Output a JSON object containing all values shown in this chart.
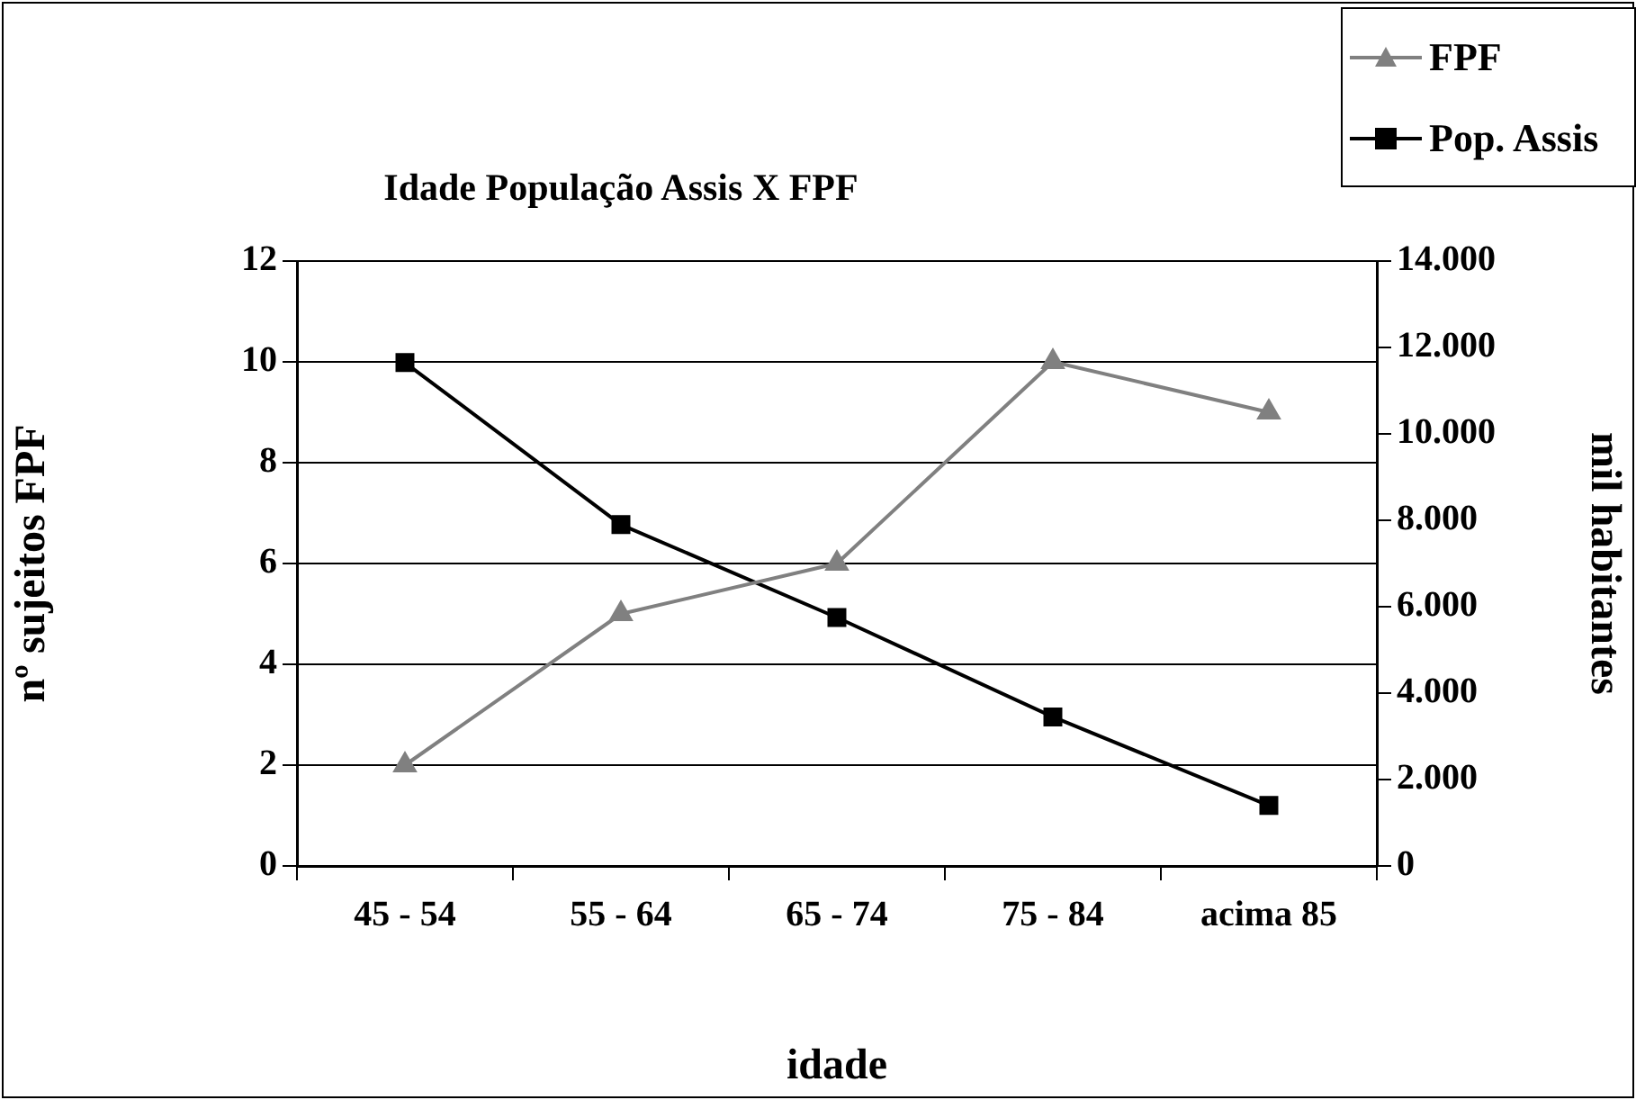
{
  "chart_data": {
    "type": "line",
    "title": "Idade População Assis X FPF",
    "xlabel": "idade",
    "ylabel": "nº sujeitos FPF",
    "y2label": "mil habitantes",
    "categories": [
      "45 - 54",
      "55 - 64",
      "65 - 74",
      "75 - 84",
      "acima 85"
    ],
    "series": [
      {
        "name": "FPF",
        "color": "#808080",
        "marker": "triangle",
        "values": [
          2,
          5,
          6,
          10,
          9
        ]
      },
      {
        "name": "Pop. Assis",
        "color": "#000000",
        "marker": "square",
        "axis": "y2",
        "values": [
          11650,
          7900,
          5750,
          3450,
          1400
        ]
      }
    ],
    "ylim": [
      0,
      12
    ],
    "yticks": [
      0,
      2,
      4,
      6,
      8,
      10,
      12
    ],
    "y2lim": [
      0,
      14000
    ],
    "y2ticks": [
      {
        "value": 0,
        "label": "0"
      },
      {
        "value": 2000,
        "label": "2.000"
      },
      {
        "value": 4000,
        "label": "4.000"
      },
      {
        "value": 6000,
        "label": "6.000"
      },
      {
        "value": 8000,
        "label": "8.000"
      },
      {
        "value": 10000,
        "label": "10.000"
      },
      {
        "value": 12000,
        "label": "12.000"
      },
      {
        "value": 14000,
        "label": "14.000"
      }
    ],
    "grid": "y",
    "legend": "top right"
  }
}
